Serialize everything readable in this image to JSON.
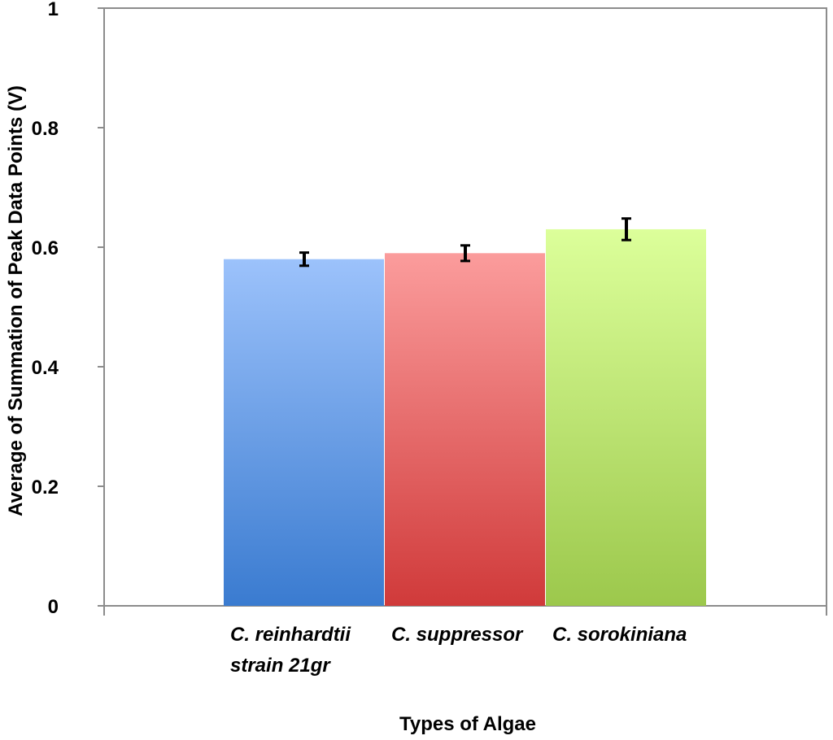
{
  "chart_data": {
    "type": "bar",
    "title": "",
    "xlabel": "Types of Algae",
    "ylabel": "Average of Summation of Peak Data Points (V)",
    "ylim": [
      0,
      1
    ],
    "yticks": [
      0,
      0.2,
      0.4,
      0.6,
      0.8,
      1
    ],
    "ytick_labels": [
      "0",
      "0.2",
      "0.4",
      "0.6",
      "0.8",
      "1"
    ],
    "grid": false,
    "categories": [
      [
        "C. reinhardtii",
        "strain 21gr"
      ],
      [
        "C. suppressor"
      ],
      [
        "C. sorokiniana"
      ]
    ],
    "values": [
      0.58,
      0.59,
      0.63
    ],
    "errors": [
      0.011,
      0.013,
      0.018
    ],
    "colors": [
      {
        "top": "#9cc2fb",
        "bottom": "#3a7bd0"
      },
      {
        "top": "#fb9c9c",
        "bottom": "#d03a3a"
      },
      {
        "top": "#dcff9a",
        "bottom": "#9cc84c"
      }
    ]
  }
}
